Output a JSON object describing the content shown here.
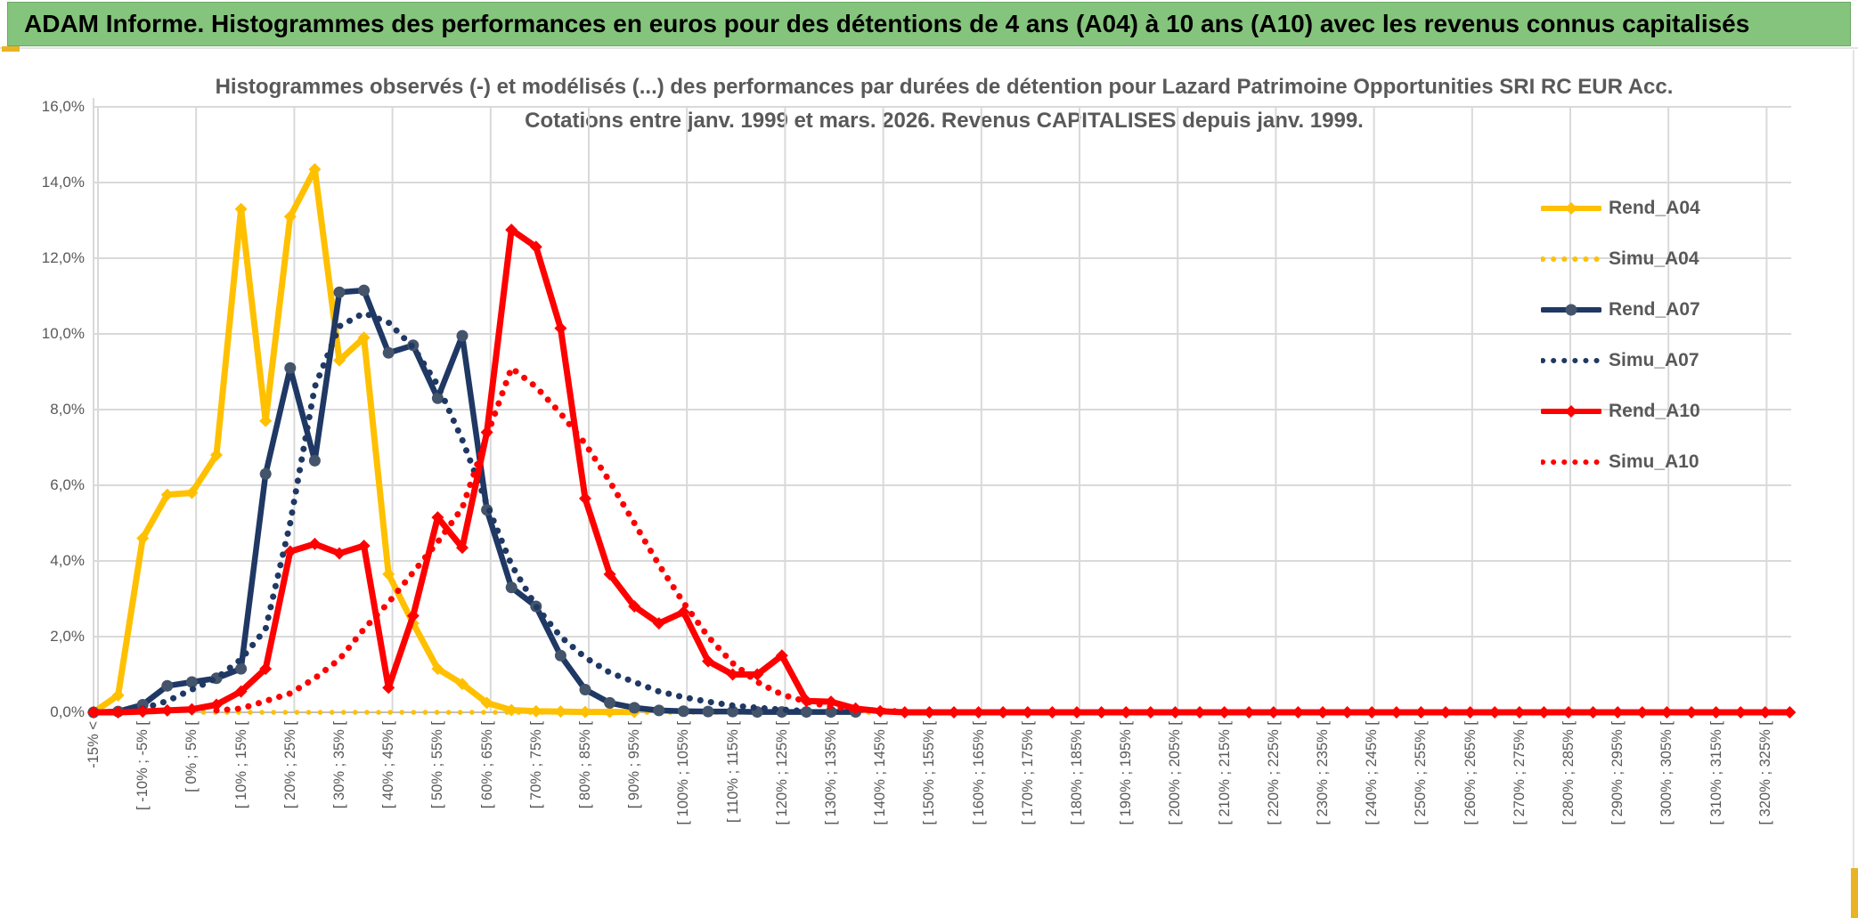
{
  "header": {
    "title": "ADAM Informe. Histogrammes des performances en euros pour des détentions de 4 ans (A04) à 10 ans (A10) avec les revenus connus capitalisés",
    "bg_color": "#85C47C",
    "accent_gold": "#E9B424"
  },
  "chart_data": {
    "type": "line",
    "title": "Histogrammes observés (-) et modélisés (...) des performances par durées de détention pour Lazard Patrimoine Opportunities SRI RC EUR Acc.",
    "subtitle": "Cotations entre janv. 1999 et mars. 2026. Revenus CAPITALISES depuis janv. 1999.",
    "ylim": [
      0,
      16
    ],
    "y_tick_labels": [
      "0,0%",
      "2,0%",
      "4,0%",
      "6,0%",
      "8,0%",
      "10,0%",
      "12,0%",
      "14,0%",
      "16,0%"
    ],
    "grid": true,
    "legend_position": "right-inside",
    "n_bins": 70,
    "x_tick_every": 2,
    "x_tick_labels": [
      "-15% <",
      "[ -10% ; -5% [",
      "[ 0% ; 5% [",
      "[ 10% ; 15% [",
      "[ 20% ; 25% [",
      "[ 30% ; 35% [",
      "[ 40% ; 45% [",
      "[ 50% ; 55% [",
      "[ 60% ; 65% [",
      "[ 70% ; 75% [",
      "[ 80% ; 85% [",
      "[ 90% ; 95% [",
      "[ 100% ; 105% [",
      "[ 110% ; 115% [",
      "[ 120% ; 125% [",
      "[ 130% ; 135% [",
      "[ 140% ; 145% [",
      "[ 150% ; 155% [",
      "[ 160% ; 165% [",
      "[ 170% ; 175% [",
      "[ 180% ; 185% [",
      "[ 190% ; 195% [",
      "[ 200% ; 205% [",
      "[ 210% ; 215% [",
      "[ 220% ; 225% [",
      "[ 230% ; 235% [",
      "[ 240% ; 245% [",
      "[ 250% ; 255% [",
      "[ 260% ; 265% [",
      "[ 270% ; 275% [",
      "[ 280% ; 285% [",
      "[ 290% ; 295% [",
      "[ 300% ; 305% [",
      "[ 310% ; 315% [",
      "[ 320% ; 325% ["
    ],
    "colors": {
      "gold": "#FFC000",
      "navy": "#1F3864",
      "navy_marker": "#44546A",
      "red": "#FF0000",
      "grid": "#D9D9D9",
      "axis": "#BFBFBF",
      "text": "#595959"
    },
    "series": [
      {
        "name": "Rend_A04",
        "color": "#FFC000",
        "style": "solid",
        "marker": "diamond",
        "marker_color": "#FFC000",
        "width": 7,
        "start": 0,
        "values": [
          0,
          0.45,
          4.6,
          5.75,
          5.8,
          6.8,
          13.3,
          7.7,
          13.1,
          14.35,
          9.3,
          9.9,
          3.65,
          2.35,
          1.15,
          0.75,
          0.25,
          0.06,
          0.03,
          0.02,
          0.01,
          0.01,
          0.01
        ]
      },
      {
        "name": "Simu_A04",
        "color": "#FFC000",
        "style": "dotted",
        "width": 5.5,
        "gap": 13,
        "start": 4,
        "values": [
          0,
          0,
          0,
          0,
          0,
          0,
          0,
          0,
          0,
          0,
          0,
          0,
          0,
          0,
          0,
          0,
          0,
          0,
          0,
          0,
          0,
          0,
          0,
          0,
          0,
          0,
          0,
          0,
          0
        ]
      },
      {
        "name": "Rend_A07",
        "color": "#1F3864",
        "style": "solid",
        "marker": "circle",
        "marker_color": "#44546A",
        "width": 6.5,
        "start": 0,
        "values": [
          0,
          0.02,
          0.2,
          0.7,
          0.8,
          0.9,
          1.15,
          6.3,
          9.1,
          6.65,
          11.1,
          11.15,
          9.5,
          9.7,
          8.3,
          9.95,
          5.35,
          3.3,
          2.8,
          1.5,
          0.6,
          0.25,
          0.12,
          0.05,
          0.03,
          0.02,
          0.02,
          0.01,
          0.01,
          0.01,
          0.01,
          0.01
        ]
      },
      {
        "name": "Simu_A07",
        "color": "#1F3864",
        "style": "dotted",
        "width": 7,
        "gap": 12,
        "start": 2,
        "values": [
          0.1,
          0.3,
          0.6,
          0.9,
          1.4,
          2.2,
          5.0,
          8.6,
          10.2,
          10.55,
          10.3,
          9.65,
          8.65,
          7.2,
          5.5,
          3.9,
          2.8,
          2.0,
          1.45,
          1.05,
          0.8,
          0.55,
          0.4,
          0.28,
          0.18,
          0.12,
          0.07,
          0.03
        ]
      },
      {
        "name": "Rend_A10",
        "color": "#FF0000",
        "style": "solid",
        "marker": "diamond",
        "marker_color": "#FF0000",
        "width": 7,
        "start": 0,
        "values": [
          0,
          0,
          0.02,
          0.05,
          0.08,
          0.2,
          0.55,
          1.15,
          4.25,
          4.45,
          4.2,
          4.4,
          0.65,
          2.55,
          5.15,
          4.35,
          7.4,
          12.75,
          12.3,
          10.15,
          5.65,
          3.65,
          2.8,
          2.35,
          2.65,
          1.35,
          1.0,
          1.0,
          1.5,
          0.3,
          0.28,
          0.1,
          0.03,
          0,
          0,
          0,
          0,
          0,
          0,
          0,
          0,
          0,
          0,
          0,
          0,
          0,
          0,
          0,
          0,
          0,
          0,
          0,
          0,
          0,
          0,
          0,
          0,
          0,
          0,
          0,
          0,
          0,
          0,
          0,
          0,
          0,
          0,
          0,
          0,
          0
        ]
      },
      {
        "name": "Simu_A10",
        "color": "#FF0000",
        "style": "dotted",
        "width": 7,
        "gap": 12,
        "start": 5,
        "values": [
          0.05,
          0.1,
          0.3,
          0.5,
          0.9,
          1.4,
          2.2,
          2.9,
          3.7,
          4.5,
          5.4,
          7.3,
          9.1,
          8.6,
          7.9,
          7.1,
          6.1,
          5.0,
          3.9,
          2.9,
          2.0,
          1.3,
          0.8,
          0.47,
          0.28,
          0.15,
          0.08,
          0.04,
          0.02
        ]
      }
    ]
  },
  "legend": {
    "items": [
      {
        "label": "Rend_A04",
        "color": "#FFC000",
        "style": "solid",
        "marker": "diamond"
      },
      {
        "label": "Simu_A04",
        "color": "#FFC000",
        "style": "dotted"
      },
      {
        "label": "Rend_A07",
        "color": "#1F3864",
        "style": "solid",
        "marker": "circle",
        "marker_color": "#44546A"
      },
      {
        "label": "Simu_A07",
        "color": "#1F3864",
        "style": "dotted"
      },
      {
        "label": "Rend_A10",
        "color": "#FF0000",
        "style": "solid",
        "marker": "diamond"
      },
      {
        "label": "Simu_A10",
        "color": "#FF0000",
        "style": "dotted"
      }
    ]
  }
}
